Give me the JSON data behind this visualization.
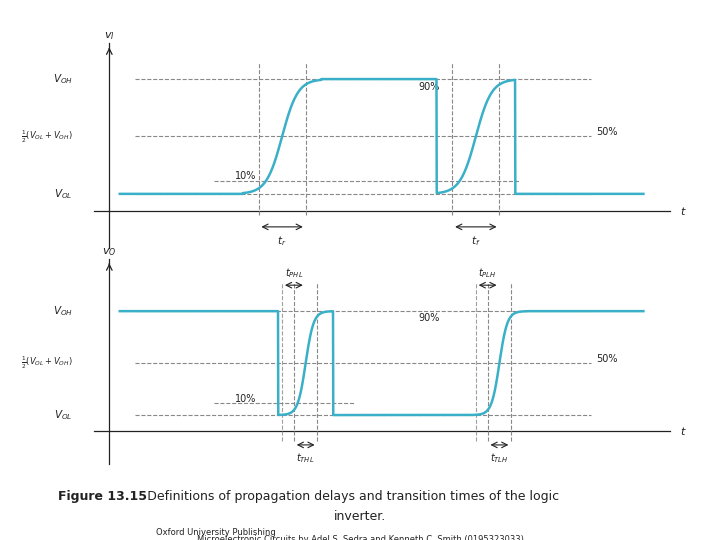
{
  "fig_width": 7.2,
  "fig_height": 5.4,
  "bg_color": "#ffffff",
  "signal_color": "#3ab0c8",
  "dashed_color": "#888888",
  "arrow_color": "#222222",
  "text_color": "#222222",
  "VOL": 0.1,
  "VOH": 0.9,
  "V50": 0.5,
  "V10": 0.19,
  "V90": 0.81,
  "tr_10": 0.265,
  "tr_90": 0.355,
  "tf_90": 0.635,
  "tf_10": 0.725,
  "tPHL_delay": 0.045,
  "tPLH_delay": 0.045,
  "title_bold": "Figure 13.15",
  "title_rest": ": Definitions of propagation delays and transition times of the logic",
  "title_line2": "inverter.",
  "pub_line1": "Oxford University Publishing",
  "pub_line2": "Microelectronic Circuits by Adel S. Sedra and Kenneth C. Smith (0195323033)"
}
